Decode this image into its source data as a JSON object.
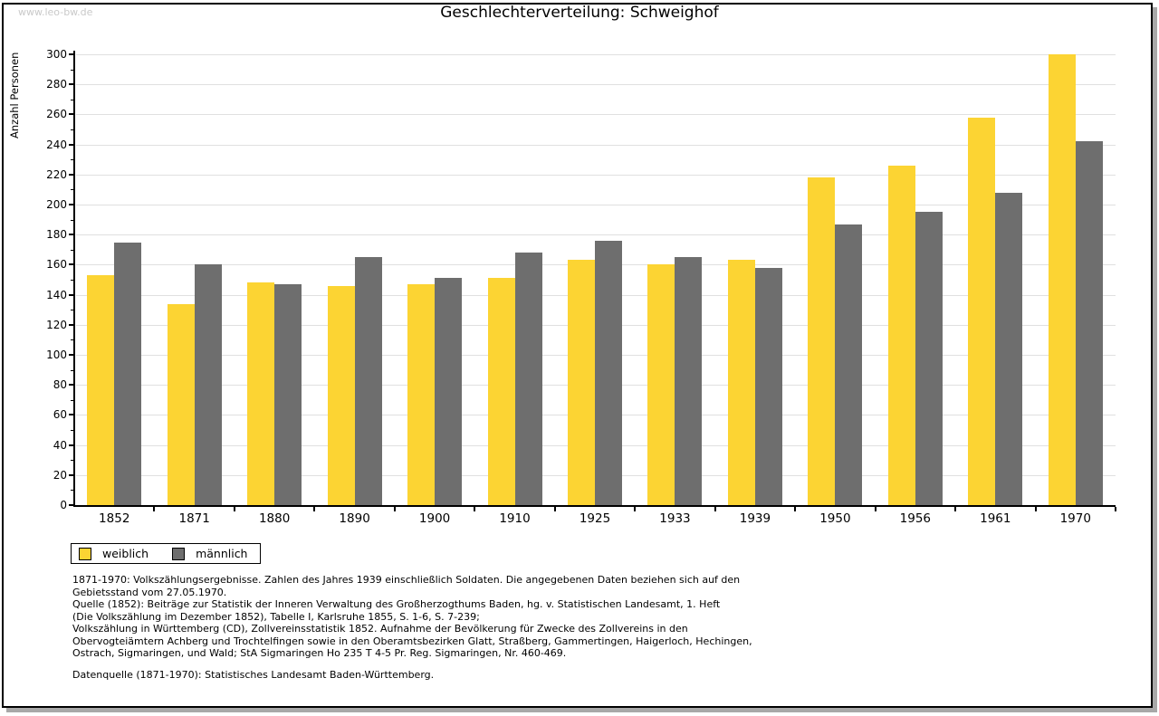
{
  "watermark": "www.leo-bw.de",
  "title": "Geschlechterverteilung: Schweighof",
  "ylabel": "Anzahl Personen",
  "legend": {
    "items": [
      {
        "label": "weiblich",
        "color": "#fcd433"
      },
      {
        "label": "männlich",
        "color": "#6e6e6e"
      }
    ]
  },
  "footnotes": {
    "lines": [
      "1871-1970: Volkszählungsergebnisse. Zahlen des Jahres 1939 einschließlich Soldaten. Die angegebenen Daten beziehen sich auf den",
      "Gebietsstand vom 27.05.1970.",
      "Quelle (1852): Beiträge zur Statistik der Inneren Verwaltung des Großherzogthums Baden, hg. v. Statistischen Landesamt, 1. Heft",
      "(Die Volkszählung im Dezember 1852), Tabelle I, Karlsruhe 1855, S. 1-6, S. 7-239;",
      "Volkszählung in Württemberg (CD), Zollvereinsstatistik 1852. Aufnahme der Bevölkerung für Zwecke des Zollvereins in den",
      "Obervogteiämtern Achberg und Trochtelfingen sowie in den Oberamtsbezirken Glatt, Straßberg, Gammertingen, Haigerloch, Hechingen,",
      "Ostrach, Sigmaringen, und Wald; StA Sigmaringen Ho 235 T 4-5 Pr. Reg. Sigmaringen, Nr. 460-469."
    ],
    "datasource": "Datenquelle (1871-1970): Statistisches Landesamt Baden-Württemberg."
  },
  "chart_data": {
    "type": "bar",
    "title": "Geschlechterverteilung: Schweighof",
    "xlabel": "",
    "ylabel": "Anzahl Personen",
    "categories": [
      "1852",
      "1871",
      "1880",
      "1890",
      "1900",
      "1910",
      "1925",
      "1933",
      "1939",
      "1950",
      "1956",
      "1961",
      "1970"
    ],
    "series": [
      {
        "name": "weiblich",
        "color": "#fcd433",
        "values": [
          153,
          134,
          148,
          146,
          147,
          151,
          163,
          160,
          163,
          218,
          226,
          258,
          300
        ]
      },
      {
        "name": "männlich",
        "color": "#6e6e6e",
        "values": [
          175,
          160,
          147,
          165,
          151,
          168,
          176,
          165,
          158,
          187,
          195,
          208,
          242
        ]
      }
    ],
    "ylim": [
      0,
      300
    ],
    "ytick_step": 20,
    "ytick_minor_step": 10,
    "grid": true,
    "gridline_color": "#e0e0e0",
    "legend_position": "bottom-left"
  }
}
